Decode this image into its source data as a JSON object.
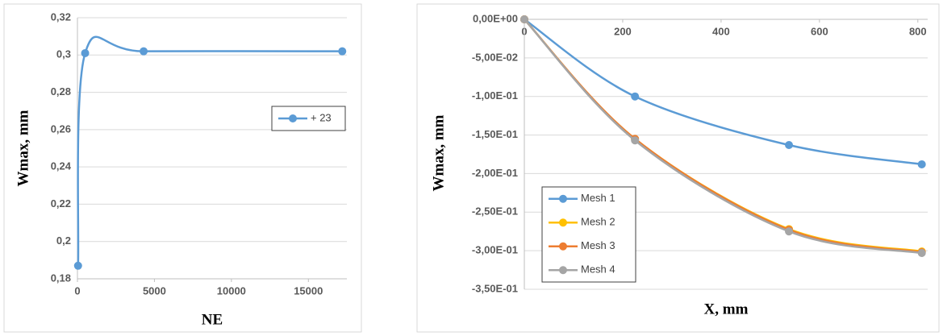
{
  "chart_data": [
    {
      "type": "line",
      "xlabel": "NE",
      "ylabel": "Wmax, mm",
      "x": [
        40,
        500,
        4300,
        17200
      ],
      "series": [
        {
          "name": "+ 23",
          "color": "#5b9bd5",
          "values": [
            0.187,
            0.301,
            0.302,
            0.302
          ]
        }
      ],
      "xlim": [
        0,
        17500
      ],
      "ylim": [
        0.18,
        0.32
      ],
      "xticks": [
        0,
        5000,
        10000,
        15000
      ],
      "yticks": [
        {
          "value": 0.18,
          "label": "0,18"
        },
        {
          "value": 0.2,
          "label": "0,2"
        },
        {
          "value": 0.22,
          "label": "0,22"
        },
        {
          "value": 0.24,
          "label": "0,24"
        },
        {
          "value": 0.26,
          "label": "0,26"
        },
        {
          "value": 0.28,
          "label": "0,28"
        },
        {
          "value": 0.3,
          "label": "0,3"
        },
        {
          "value": 0.32,
          "label": "0,32"
        }
      ],
      "grid": true,
      "legend": "right"
    },
    {
      "type": "line",
      "xlabel": "X, mm",
      "ylabel": "Wmax, mm",
      "x": [
        0,
        225,
        538,
        808
      ],
      "series": [
        {
          "name": "Mesh 1",
          "color": "#5b9bd5",
          "values": [
            0,
            -0.1,
            -0.163,
            -0.188
          ]
        },
        {
          "name": "Mesh 2",
          "color": "#ffc000",
          "values": [
            0,
            -0.155,
            -0.272,
            -0.301
          ]
        },
        {
          "name": "Mesh 3",
          "color": "#ed7d31",
          "values": [
            0,
            -0.155,
            -0.273,
            -0.302
          ]
        },
        {
          "name": "Mesh 4",
          "color": "#a5a5a5",
          "values": [
            0,
            -0.157,
            -0.275,
            -0.303
          ]
        }
      ],
      "xlim": [
        0,
        820
      ],
      "ylim": [
        -0.35,
        0
      ],
      "xticks": [
        0,
        200,
        400,
        600,
        800
      ],
      "yticks": [
        {
          "value": 0,
          "label": "0,00E+00"
        },
        {
          "value": -0.05,
          "label": "-5,00E-02"
        },
        {
          "value": -0.1,
          "label": "-1,00E-01"
        },
        {
          "value": -0.15,
          "label": "-1,50E-01"
        },
        {
          "value": -0.2,
          "label": "-2,00E-01"
        },
        {
          "value": -0.25,
          "label": "-2,50E-01"
        },
        {
          "value": -0.3,
          "label": "-3,00E-01"
        },
        {
          "value": -0.35,
          "label": "-3,50E-01"
        }
      ],
      "grid": true,
      "legend": "lower left"
    }
  ]
}
